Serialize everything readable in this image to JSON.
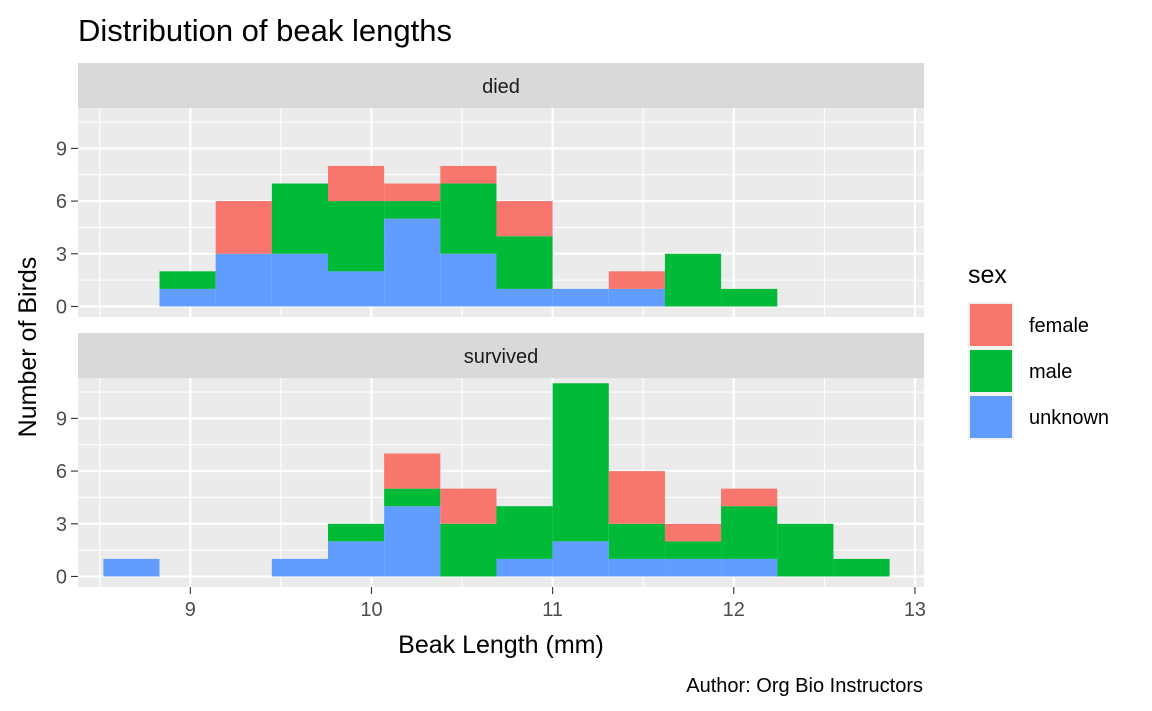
{
  "chart_data": {
    "type": "histogram",
    "title": "Distribution of beak lengths",
    "xlabel": "Beak Length (mm)",
    "ylabel": "Number of Birds",
    "caption": "Author: Org Bio Instructors",
    "xlim": [
      8.38,
      13.05
    ],
    "x_ticks": [
      9,
      10,
      11,
      12,
      13
    ],
    "y_ticks": [
      0,
      3,
      6,
      9
    ],
    "bin_edges": [
      8.52,
      8.83,
      9.14,
      9.45,
      9.76,
      10.07,
      10.38,
      10.69,
      11.0,
      11.31,
      11.62,
      11.93,
      12.24,
      12.55,
      12.86
    ],
    "stack_order": [
      "unknown",
      "male",
      "female"
    ],
    "legend": {
      "title": "sex",
      "position": "right",
      "entries": [
        {
          "key": "female",
          "label": "female",
          "color": "#F8766D"
        },
        {
          "key": "male",
          "label": "male",
          "color": "#00BA38"
        },
        {
          "key": "unknown",
          "label": "unknown",
          "color": "#619CFF"
        }
      ]
    },
    "panels": [
      {
        "label": "died",
        "ylim": [
          -0.6,
          11.3
        ],
        "series": [
          {
            "name": "unknown",
            "values": [
              0,
              1,
              3,
              3,
              2,
              5,
              3,
              1,
              1,
              1,
              0,
              0,
              0,
              0
            ]
          },
          {
            "name": "male",
            "values": [
              0,
              1,
              0,
              4,
              4,
              1,
              4,
              3,
              0,
              0,
              3,
              1,
              0,
              0
            ]
          },
          {
            "name": "female",
            "values": [
              0,
              0,
              3,
              0,
              2,
              1,
              1,
              2,
              0,
              1,
              0,
              0,
              0,
              0
            ]
          }
        ]
      },
      {
        "label": "survived",
        "ylim": [
          -0.6,
          11.3
        ],
        "series": [
          {
            "name": "unknown",
            "values": [
              1,
              0,
              0,
              1,
              2,
              4,
              0,
              1,
              2,
              1,
              1,
              1,
              0,
              0
            ]
          },
          {
            "name": "male",
            "values": [
              0,
              0,
              0,
              0,
              1,
              1,
              3,
              3,
              9,
              2,
              1,
              3,
              3,
              1
            ]
          },
          {
            "name": "female",
            "values": [
              0,
              0,
              0,
              0,
              0,
              2,
              2,
              0,
              0,
              3,
              1,
              1,
              0,
              0
            ]
          }
        ]
      }
    ]
  }
}
